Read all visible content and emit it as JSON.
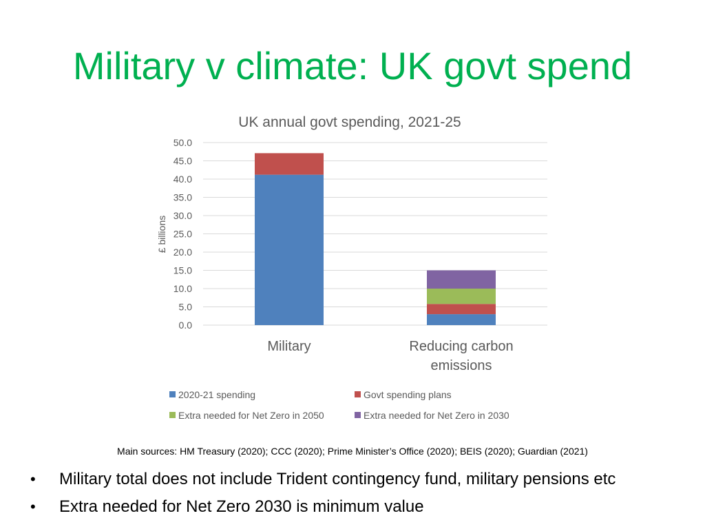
{
  "slide": {
    "title": "Military v climate: UK govt spend",
    "sources": "Main sources: HM Treasury (2020); CCC (2020); Prime Minister’s Office (2020); BEIS (2020); Guardian (2021)",
    "bullets": [
      "Military total does not include Trident contingency fund, military pensions etc",
      "Extra needed for Net Zero 2030 is minimum value"
    ]
  },
  "chart_data": {
    "type": "bar",
    "stacked": true,
    "title": "UK annual govt spending, 2021-25",
    "xlabel": "",
    "ylabel": "£ billions",
    "ylim": [
      0,
      50
    ],
    "yticks": [
      "0.0",
      "5.0",
      "10.0",
      "15.0",
      "20.0",
      "25.0",
      "30.0",
      "35.0",
      "40.0",
      "45.0",
      "50.0"
    ],
    "grid": true,
    "legend_position": "bottom",
    "categories": [
      [
        "Military"
      ],
      [
        "Reducing carbon",
        "emissions"
      ]
    ],
    "series": [
      {
        "name": "2020-21 spending",
        "color": "#4f81bd",
        "values": [
          41.2,
          3.0
        ]
      },
      {
        "name": "Govt spending plans",
        "color": "#c0504d",
        "values": [
          5.9,
          2.8
        ]
      },
      {
        "name": "Extra needed for Net Zero in 2050",
        "color": "#9bbb59",
        "values": [
          0,
          4.2
        ]
      },
      {
        "name": "Extra needed for Net Zero in 2030",
        "color": "#8064a2",
        "values": [
          0,
          5.0
        ]
      }
    ]
  }
}
